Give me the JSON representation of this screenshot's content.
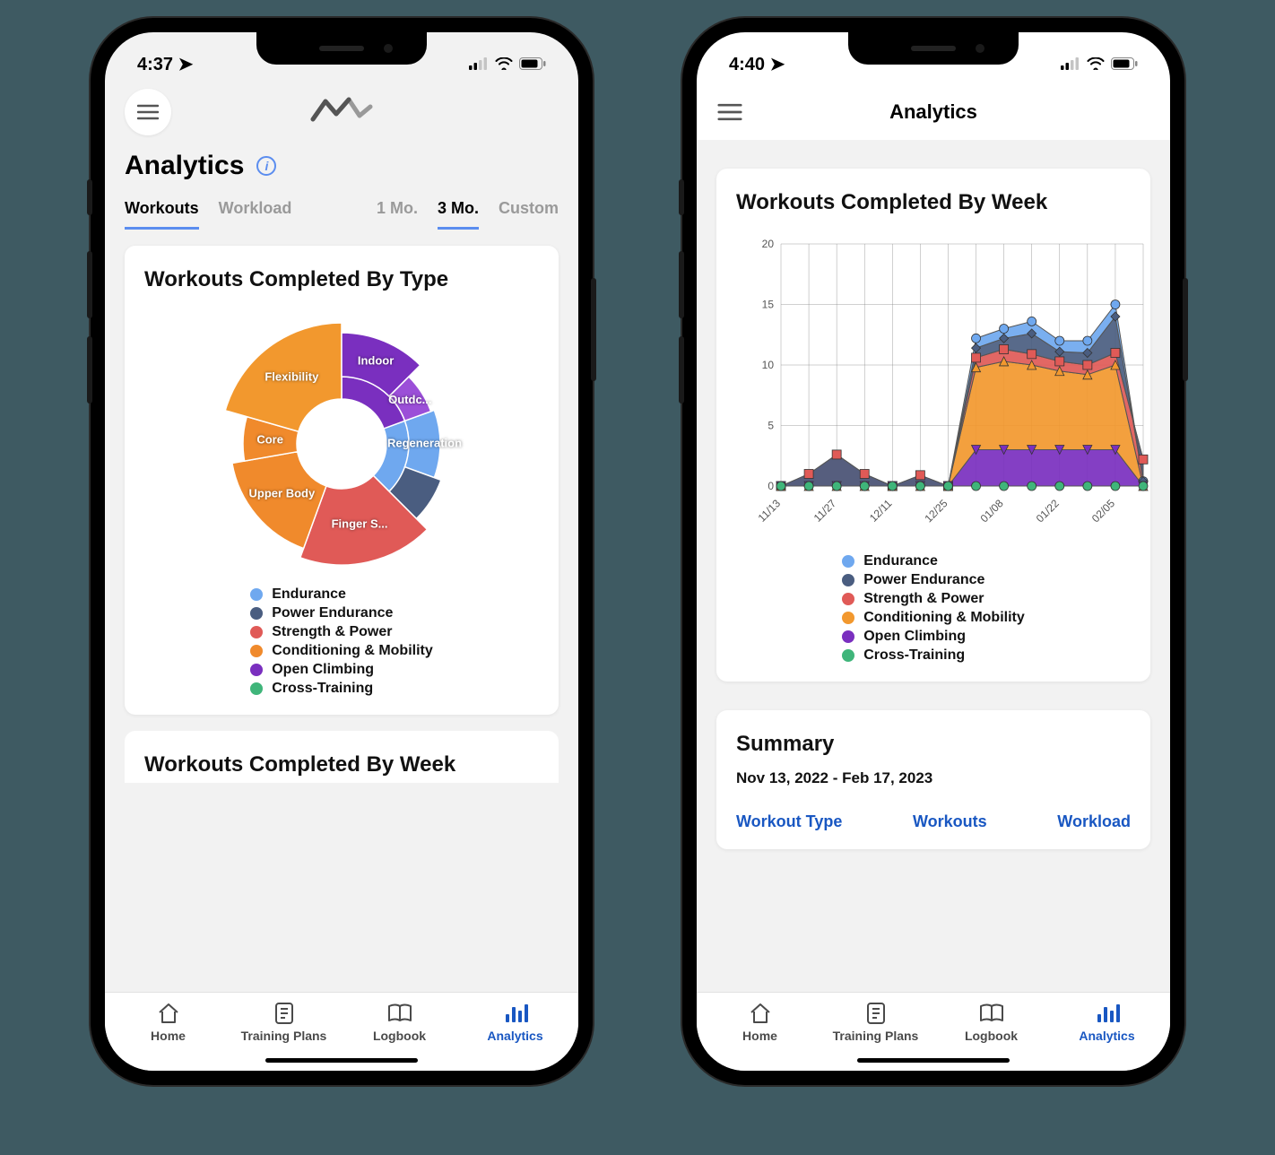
{
  "colors": {
    "background": "#3e5a62",
    "page_bg": "#f2f2f2",
    "card_bg": "#ffffff",
    "accent": "#5b8def",
    "link_blue": "#1957c2",
    "text": "#111111",
    "muted": "#9a9a9a"
  },
  "phone_left": {
    "status": {
      "time": "4:37",
      "location_arrow": true
    },
    "header": {
      "menu_icon": "menu",
      "logo_icon": "mountain-line"
    },
    "page_title": "Analytics",
    "info_icon": "info",
    "tabs_left": [
      {
        "label": "Workouts",
        "active": true
      },
      {
        "label": "Workload",
        "active": false
      }
    ],
    "tabs_right": [
      {
        "label": "1 Mo.",
        "active": false
      },
      {
        "label": "3 Mo.",
        "active": true
      },
      {
        "label": "Custom",
        "active": false
      }
    ],
    "card1_title": "Workouts Completed By Type",
    "pie_chart": {
      "type": "sunburst",
      "outer_radius": 135,
      "inner_hole_radius": 50,
      "background": "#ffffff",
      "stroke": "#ffffff",
      "stroke_width": 1.5,
      "slices": [
        {
          "label": "Regeneration",
          "start_deg": 70,
          "end_deg": 110,
          "inner_r": 75,
          "outer_r": 110,
          "color": "#6fa8ef"
        },
        {
          "label": "",
          "start_deg": 110,
          "end_deg": 135,
          "inner_r": 75,
          "outer_r": 118,
          "color": "#4a5d80"
        },
        {
          "label": "Finger S...",
          "start_deg": 135,
          "end_deg": 200,
          "inner_r": 50,
          "outer_r": 135,
          "color": "#e05a57"
        },
        {
          "label": "Upper Body",
          "start_deg": 200,
          "end_deg": 260,
          "inner_r": 50,
          "outer_r": 124,
          "color": "#f08a2c"
        },
        {
          "label": "Core",
          "start_deg": 260,
          "end_deg": 286,
          "inner_r": 50,
          "outer_r": 110,
          "color": "#f08a2c"
        },
        {
          "label": "Flexibility",
          "start_deg": 286,
          "end_deg": 360,
          "inner_r": 50,
          "outer_r": 135,
          "color": "#f2982e"
        },
        {
          "label": "Indoor",
          "start_deg": 0,
          "end_deg": 45,
          "inner_r": 75,
          "outer_r": 124,
          "color": "#7a2fbf"
        },
        {
          "label": "Outdc...",
          "start_deg": 45,
          "end_deg": 70,
          "inner_r": 75,
          "outer_r": 106,
          "color": "#9b4fd8"
        }
      ],
      "inner_ring": [
        {
          "start_deg": 70,
          "end_deg": 135,
          "color": "#6fa8ef"
        },
        {
          "start_deg": 135,
          "end_deg": 200,
          "color": "#e05a57"
        },
        {
          "start_deg": 200,
          "end_deg": 360,
          "color": "#f08a2c"
        },
        {
          "start_deg": 0,
          "end_deg": 70,
          "color": "#7a2fbf"
        }
      ]
    },
    "legend": [
      {
        "label": "Endurance",
        "color": "#6fa8ef"
      },
      {
        "label": "Power Endurance",
        "color": "#4a5d80"
      },
      {
        "label": "Strength & Power",
        "color": "#e05a57"
      },
      {
        "label": "Conditioning & Mobility",
        "color": "#f08a2c"
      },
      {
        "label": "Open Climbing",
        "color": "#7a2fbf"
      },
      {
        "label": "Cross-Training",
        "color": "#3fb57a"
      }
    ],
    "peek_card_title": "Workouts Completed By Week"
  },
  "phone_right": {
    "status": {
      "time": "4:40",
      "location_arrow": true
    },
    "header": {
      "menu_icon": "menu",
      "title": "Analytics"
    },
    "card1_title": "Workouts Completed By Week",
    "area_chart": {
      "type": "stacked-area-with-markers",
      "background": "#ffffff",
      "grid_color": "#888888",
      "grid_width": 0.4,
      "axis_fontsize": 12,
      "ylim": [
        0,
        20
      ],
      "yticks": [
        0,
        5,
        10,
        15,
        20
      ],
      "x_labels": [
        "11/13",
        "11/27",
        "12/11",
        "12/25",
        "01/08",
        "01/22",
        "02/05"
      ],
      "x_count": 14,
      "marker_size": 5,
      "series": [
        {
          "name": "Endurance",
          "color": "#6fa8ef",
          "marker": "circle",
          "values": [
            0,
            0,
            0,
            0,
            0,
            0,
            0,
            12.2,
            13,
            13.6,
            12,
            12,
            15,
            0.4
          ]
        },
        {
          "name": "Power Endurance",
          "color": "#4a5d80",
          "marker": "diamond",
          "values": [
            0,
            0,
            0,
            0,
            0,
            0,
            0,
            11.4,
            12.2,
            12.6,
            11.1,
            11,
            14,
            0.4
          ]
        },
        {
          "name": "Strength & Power",
          "color": "#e05a57",
          "marker": "square",
          "values": [
            0,
            1,
            2.6,
            1,
            0,
            0.9,
            0,
            10.6,
            11.3,
            10.9,
            10.3,
            10,
            11,
            2.2
          ]
        },
        {
          "name": "Conditioning & Mobility",
          "color": "#f2982e",
          "marker": "triangle",
          "values": [
            0,
            0,
            0,
            0,
            0,
            0,
            0,
            9.8,
            10.3,
            10,
            9.5,
            9.2,
            10,
            0
          ]
        },
        {
          "name": "Open Climbing",
          "color": "#7a2fbf",
          "marker": "tri-down",
          "values": [
            0,
            0,
            0,
            0,
            0,
            0,
            0,
            3,
            3,
            3,
            3,
            3,
            3,
            0
          ]
        },
        {
          "name": "Cross-Training",
          "color": "#3fb57a",
          "marker": "circle",
          "values": [
            0,
            0,
            0,
            0,
            0,
            0,
            0,
            0,
            0,
            0,
            0,
            0,
            0,
            0
          ]
        }
      ]
    },
    "legend": [
      {
        "label": "Endurance",
        "color": "#6fa8ef"
      },
      {
        "label": "Power Endurance",
        "color": "#4a5d80"
      },
      {
        "label": "Strength & Power",
        "color": "#e05a57"
      },
      {
        "label": "Conditioning & Mobility",
        "color": "#f2982e"
      },
      {
        "label": "Open Climbing",
        "color": "#7a2fbf"
      },
      {
        "label": "Cross-Training",
        "color": "#3fb57a"
      }
    ],
    "summary": {
      "title": "Summary",
      "date_range": "Nov 13, 2022 - Feb 17, 2023",
      "columns": [
        "Workout Type",
        "Workouts",
        "Workload"
      ]
    }
  },
  "bottom_nav": [
    {
      "icon": "home",
      "label": "Home",
      "active": false
    },
    {
      "icon": "plans",
      "label": "Training Plans",
      "active": false
    },
    {
      "icon": "logbook",
      "label": "Logbook",
      "active": false
    },
    {
      "icon": "analytics",
      "label": "Analytics",
      "active": true
    }
  ]
}
